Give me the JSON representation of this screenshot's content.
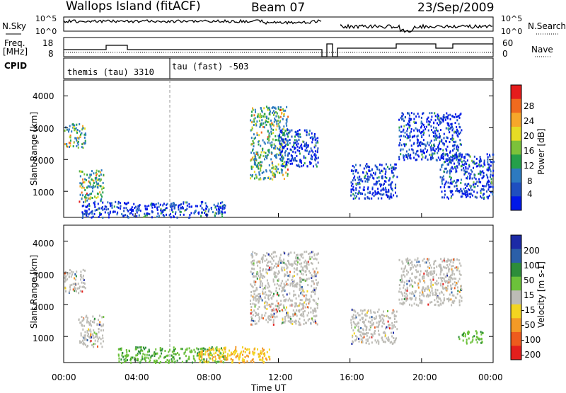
{
  "header": {
    "title": "Wallops Island (fitACF)",
    "beam": "Beam 07",
    "date": "23/Sep/2009"
  },
  "strip": {
    "nsky_label": "N.Sky",
    "nsearch_label": "N.Search",
    "freq_label_1": "Freq.",
    "freq_label_2": "[MHz]",
    "nave_label": "Nave",
    "cpid_label": "CPID",
    "left_ticks_top": [
      "10^5",
      "10^0"
    ],
    "right_ticks_top": [
      "10^5",
      "10^0"
    ],
    "left_ticks_freq": [
      "18",
      "8"
    ],
    "right_ticks_nave": [
      "60",
      "0"
    ],
    "cpid_entries": [
      "themis (tau) 3310",
      "tau (fast) -503"
    ]
  },
  "chart_data": [
    {
      "type": "heatmap",
      "title": "",
      "xlabel": "",
      "ylabel": "Slant Range [km]",
      "ylim": [
        180,
        4500
      ],
      "yticks": [
        "1000",
        "2000",
        "3000",
        "4000"
      ],
      "colorbar": {
        "label": "Power [dB]",
        "ticks": [
          "4",
          "8",
          "12",
          "16",
          "20",
          "24",
          "28"
        ],
        "colors": [
          "#0018e8",
          "#1f4fc0",
          "#2d7ac0",
          "#25a04a",
          "#7cc23a",
          "#e6dc25",
          "#f7a72a",
          "#f06a1e",
          "#e51c1c"
        ]
      },
      "regions": [
        {
          "x": [
            0.0,
            1.2
          ],
          "y": [
            2400,
            3150
          ],
          "level": "high"
        },
        {
          "x": [
            0.8,
            2.2
          ],
          "y": [
            700,
            1700
          ],
          "level": "high"
        },
        {
          "x": [
            1.0,
            9.0
          ],
          "y": [
            200,
            700
          ],
          "level": "medium"
        },
        {
          "x": [
            10.4,
            12.5
          ],
          "y": [
            1400,
            3700
          ],
          "level": "high"
        },
        {
          "x": [
            12.0,
            14.2
          ],
          "y": [
            1800,
            3000
          ],
          "level": "medium"
        },
        {
          "x": [
            16.0,
            18.6
          ],
          "y": [
            800,
            1900
          ],
          "level": "medium"
        },
        {
          "x": [
            18.7,
            22.2
          ],
          "y": [
            2000,
            3500
          ],
          "level": "medium"
        },
        {
          "x": [
            21.0,
            24.0
          ],
          "y": [
            800,
            2200
          ],
          "level": "medium"
        }
      ]
    },
    {
      "type": "heatmap",
      "title": "",
      "xlabel": "Time UT",
      "ylabel": "Slant Range [km]",
      "ylim": [
        180,
        4500
      ],
      "yticks": [
        "1000",
        "2000",
        "3000",
        "4000"
      ],
      "xticks": [
        "00:00",
        "04:00",
        "08:00",
        "12:00",
        "16:00",
        "20:00",
        "00:00"
      ],
      "colorbar": {
        "label": "Velocity [m s-1]",
        "ticks": [
          "200",
          "100",
          "50",
          "15",
          "-15",
          "-50",
          "-100",
          "-200"
        ],
        "colors": [
          "#1c2aa6",
          "#2b5fa8",
          "#2d8d3a",
          "#6cc13a",
          "#bdbcb6",
          "#f3d520",
          "#f39a26",
          "#ee5b1d",
          "#e31f1c"
        ]
      },
      "regions": [
        {
          "x": [
            0.0,
            1.2
          ],
          "y": [
            2400,
            3150
          ],
          "level": "ground"
        },
        {
          "x": [
            0.8,
            2.2
          ],
          "y": [
            700,
            1700
          ],
          "level": "ground"
        },
        {
          "x": [
            3.0,
            9.0
          ],
          "y": [
            200,
            700
          ],
          "level": "positive"
        },
        {
          "x": [
            7.5,
            11.5
          ],
          "y": [
            200,
            700
          ],
          "level": "negative"
        },
        {
          "x": [
            10.4,
            14.2
          ],
          "y": [
            1400,
            3700
          ],
          "level": "ground"
        },
        {
          "x": [
            16.0,
            18.6
          ],
          "y": [
            800,
            1900
          ],
          "level": "ground"
        },
        {
          "x": [
            18.7,
            22.2
          ],
          "y": [
            2000,
            3500
          ],
          "level": "ground"
        },
        {
          "x": [
            22.0,
            23.4
          ],
          "y": [
            800,
            1200
          ],
          "level": "positive"
        }
      ]
    }
  ]
}
